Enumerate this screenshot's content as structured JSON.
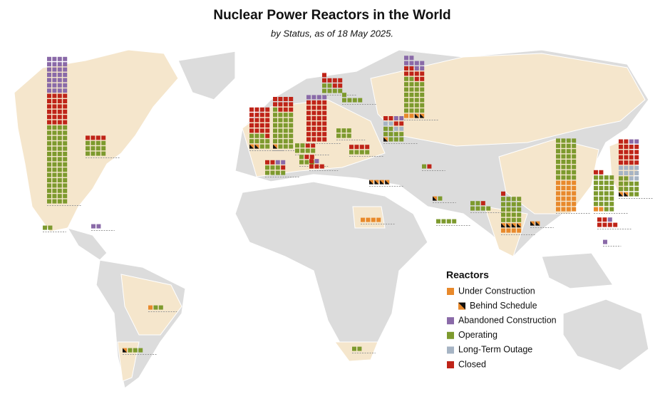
{
  "title": "Nuclear Power Reactors in the World",
  "subtitle": "by Status, as of 18 May 2025.",
  "legend": {
    "title": "Reactors",
    "items": [
      {
        "label": "Under Construction",
        "color": "#e8892b"
      },
      {
        "label": "Behind Schedule",
        "color": "#111111"
      },
      {
        "label": "Abandoned Construction",
        "color": "#8a6aa8"
      },
      {
        "label": "Operating",
        "color": "#7d9a2e"
      },
      {
        "label": "Long-Term Outage",
        "color": "#a6b4c4"
      },
      {
        "label": "Closed",
        "color": "#bf2418"
      }
    ]
  },
  "waffles": [
    [
      0,
      0,
      28,
      60,
      0,
      24
    ],
    [
      0,
      0,
      0,
      12,
      0,
      4
    ],
    [
      0,
      0,
      0,
      2,
      0,
      0
    ],
    [
      0,
      0,
      2,
      0,
      0,
      0
    ],
    [
      1,
      0,
      0,
      2,
      0,
      0
    ],
    [
      0,
      1,
      0,
      3,
      0,
      0
    ],
    [
      0,
      0,
      0,
      2,
      0,
      0
    ],
    [
      0,
      2,
      0,
      9,
      0,
      21
    ],
    [
      0,
      1,
      0,
      28,
      0,
      11
    ],
    [
      0,
      0,
      2,
      7,
      0,
      3
    ],
    [
      0,
      0,
      0,
      6,
      0,
      2
    ],
    [
      0,
      0,
      4,
      0,
      0,
      32
    ],
    [
      0,
      0,
      0,
      4,
      0,
      2
    ],
    [
      0,
      0,
      1,
      0,
      0,
      4
    ],
    [
      0,
      0,
      0,
      6,
      0,
      7
    ],
    [
      0,
      0,
      0,
      5,
      0,
      0
    ],
    [
      0,
      0,
      0,
      6,
      0,
      0
    ],
    [
      0,
      1,
      2,
      9,
      4,
      4
    ],
    [
      2,
      2,
      8,
      26,
      0,
      8
    ],
    [
      0,
      0,
      0,
      4,
      0,
      4
    ],
    [
      0,
      4,
      0,
      0,
      0,
      0
    ],
    [
      0,
      0,
      0,
      1,
      0,
      1
    ],
    [
      0,
      1,
      0,
      1,
      0,
      0
    ],
    [
      4,
      0,
      0,
      0,
      0,
      0
    ],
    [
      0,
      0,
      0,
      4,
      0,
      0
    ],
    [
      0,
      0,
      0,
      6,
      0,
      1
    ],
    [
      4,
      4,
      0,
      20,
      0,
      1
    ],
    [
      0,
      2,
      0,
      0,
      0,
      0
    ],
    [
      24,
      0,
      0,
      32,
      0,
      0
    ],
    [
      2,
      0,
      0,
      26,
      0,
      2
    ],
    [
      0,
      0,
      1,
      0,
      0,
      6
    ],
    [
      0,
      2,
      2,
      12,
      10,
      18
    ],
    [
      0,
      0,
      1,
      0,
      0,
      0
    ]
  ]
}
